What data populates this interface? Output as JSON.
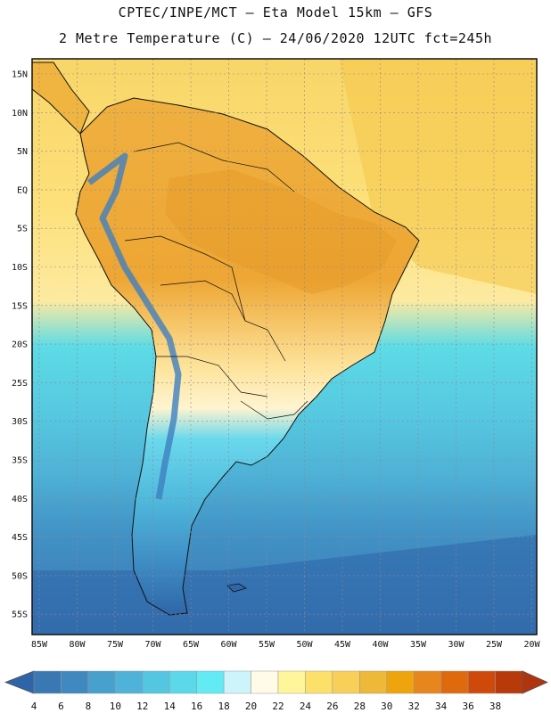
{
  "header": {
    "line1": "CPTEC/INPE/MCT –  Eta Model 15km – GFS",
    "line2": "2 Metre Temperature (C) – 24/06/2020 12UTC fct=245h"
  },
  "lat_labels": [
    "15N",
    "10N",
    "5N",
    "EQ",
    "5S",
    "10S",
    "15S",
    "20S",
    "25S",
    "30S",
    "35S",
    "40S",
    "45S",
    "50S",
    "55S"
  ],
  "lon_labels": [
    "85W",
    "80W",
    "75W",
    "70W",
    "65W",
    "60W",
    "55W",
    "50W",
    "45W",
    "40W",
    "35W",
    "30W",
    "25W",
    "20W"
  ],
  "colorbar": {
    "labels": [
      "4",
      "6",
      "8",
      "10",
      "12",
      "14",
      "16",
      "18",
      "20",
      "22",
      "24",
      "26",
      "28",
      "30",
      "32",
      "34",
      "36",
      "38"
    ],
    "colors": [
      "#3a78b4",
      "#3f88c0",
      "#48a0cc",
      "#4fb2d8",
      "#55c6e2",
      "#5bd8ea",
      "#62eaf5",
      "#cdf4fb",
      "#fffbe6",
      "#fff59a",
      "#fde06a",
      "#f8cf58",
      "#eeb838",
      "#efa40e",
      "#e8861e",
      "#df6a0e",
      "#cf4a0a",
      "#b83a0a"
    ],
    "low_color": "#2e64a8",
    "high_color": "#b03410"
  }
}
